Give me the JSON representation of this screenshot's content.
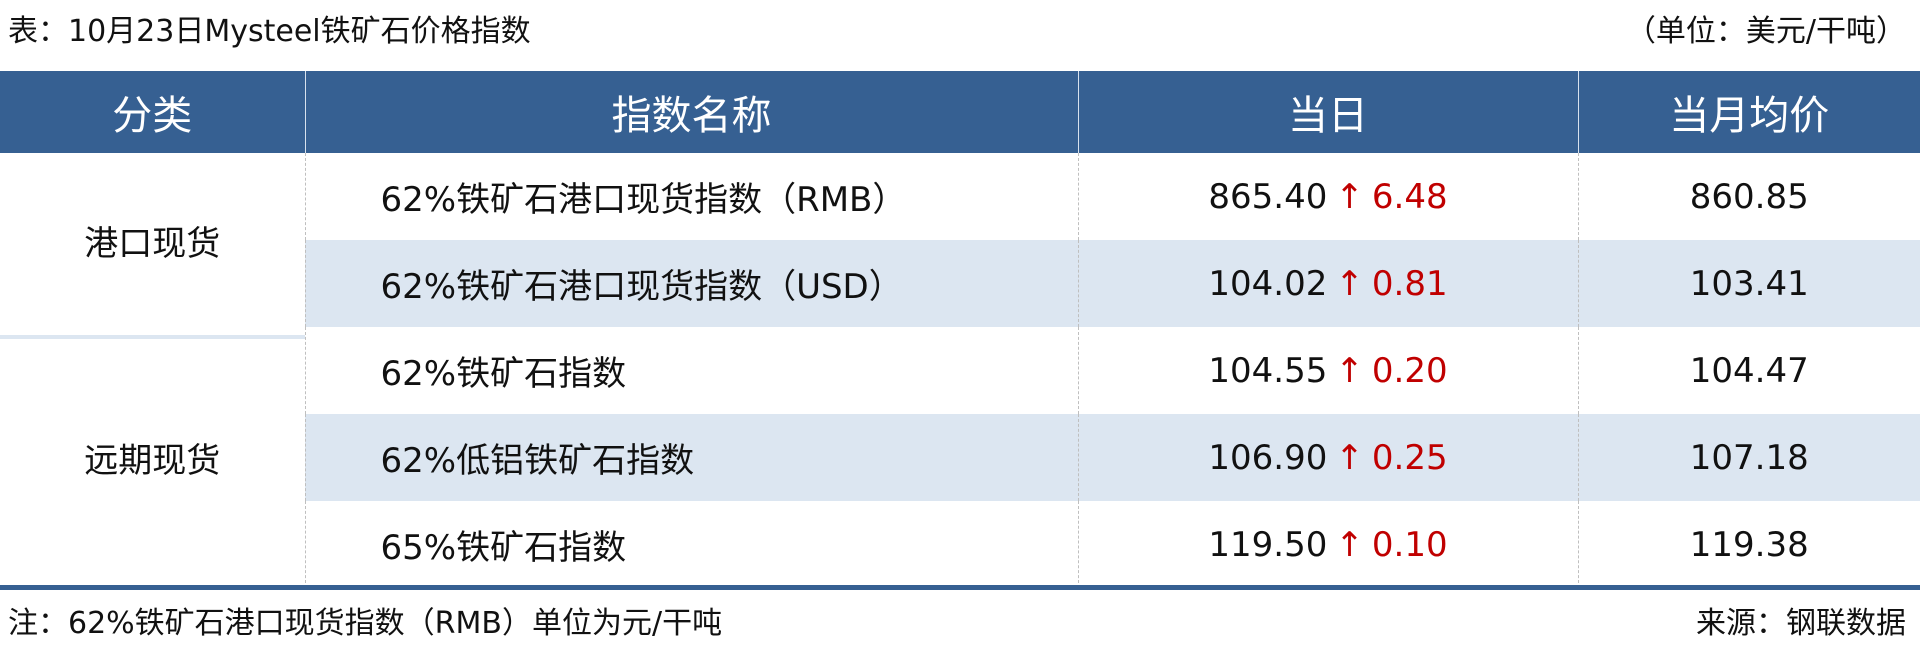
{
  "title": "表：10月23日Mysteel铁矿石价格指数",
  "unit": "（单位：美元/干吨）",
  "columns": [
    "分类",
    "指数名称",
    "当日",
    "当月均价"
  ],
  "groups": [
    {
      "category": "港口现货",
      "rows": [
        {
          "name": "62%铁矿石港口现货指数（RMB）",
          "today": "865.40",
          "change": "6.48",
          "direction": "up",
          "monthly_avg": "860.85"
        },
        {
          "name": "62%铁矿石港口现货指数（USD）",
          "today": "104.02",
          "change": "0.81",
          "direction": "up",
          "monthly_avg": "103.41"
        }
      ]
    },
    {
      "category": "远期现货",
      "rows": [
        {
          "name": "62%铁矿石指数",
          "today": "104.55",
          "change": "0.20",
          "direction": "up",
          "monthly_avg": "104.47"
        },
        {
          "name": "62%低铝铁矿石指数",
          "today": "106.90",
          "change": "0.25",
          "direction": "up",
          "monthly_avg": "107.18"
        },
        {
          "name": "65%铁矿石指数",
          "today": "119.50",
          "change": "0.10",
          "direction": "up",
          "monthly_avg": "119.38"
        }
      ]
    }
  ],
  "arrow_glyph": "↑",
  "note": "注：62%铁矿石港口现货指数（RMB）单位为元/干吨",
  "source": "来源：钢联数据",
  "colors": {
    "header_bg": "#366092",
    "alt_row_bg": "#dce6f1",
    "change_up": "#c00000"
  }
}
